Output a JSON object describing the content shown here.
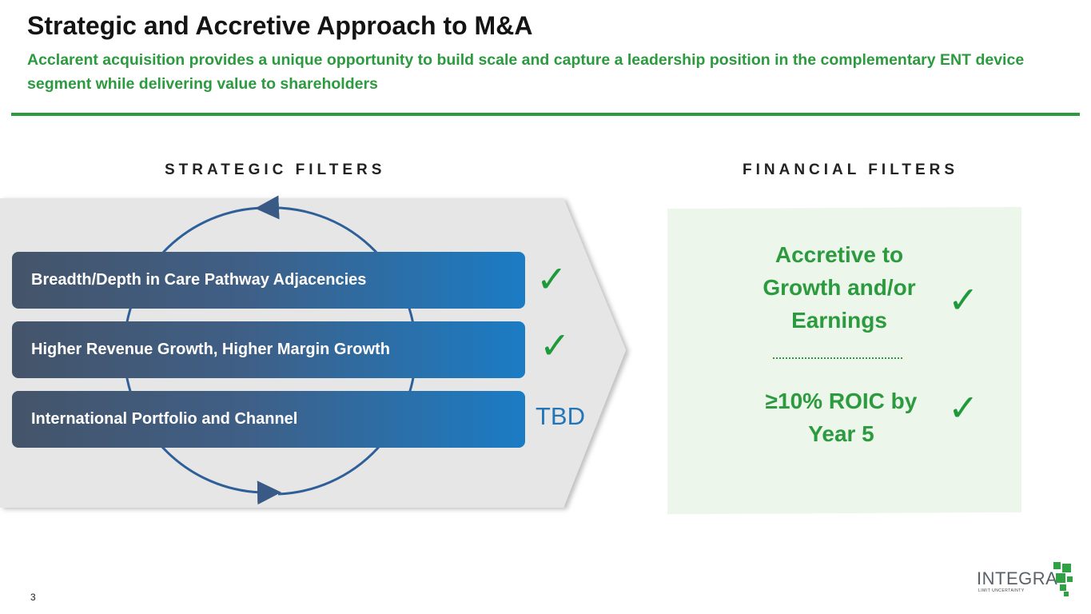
{
  "header": {
    "title": "Strategic and Accretive Approach to M&A",
    "subtitle": "Acclarent acquisition provides a unique opportunity to build scale and capture a leadership position in the complementary ENT device segment while delivering value to shareholders"
  },
  "strategic": {
    "heading": "STRATEGIC FILTERS",
    "filters": [
      {
        "label": "Breadth/Depth in Care Pathway Adjacencies",
        "status": "check"
      },
      {
        "label": "Higher Revenue Growth, Higher Margin Growth",
        "status": "check"
      },
      {
        "label": "International Portfolio and Channel",
        "status": "TBD"
      }
    ]
  },
  "financial": {
    "heading": "FINANCIAL FILTERS",
    "item1": "Accretive to Growth and/or Earnings",
    "item2": "≥10% ROIC by Year 5"
  },
  "glyphs": {
    "check": "✓"
  },
  "footer": {
    "page_number": "3",
    "logo_word": "INTEGRA",
    "logo_tag": "LIMIT UNCERTAINTY"
  },
  "colors": {
    "accent_green": "#2c9a3e",
    "bar_start": "#44546a",
    "bar_end": "#1b7cc4",
    "tbd_blue": "#2276b8"
  }
}
